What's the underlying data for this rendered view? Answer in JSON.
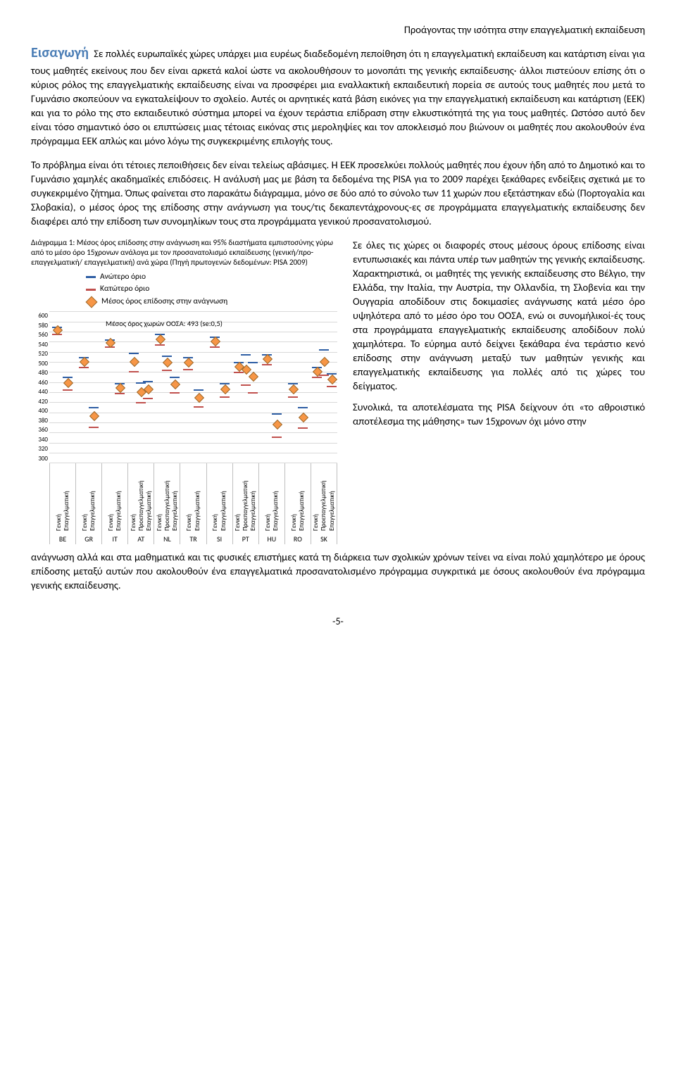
{
  "running_head": "Προάγοντας την ισότητα στην επαγγελματική εκπαίδευση",
  "section_title": "Εισαγωγή",
  "para1": "Σε πολλές ευρωπαϊκές χώρες υπάρχει μια ευρέως διαδεδομένη πεποίθηση ότι η επαγγελματική εκπαίδευση και κατάρτιση είναι για τους μαθητές εκείνους που δεν είναι αρκετά καλοί ώστε να ακολουθήσουν το μονοπάτι της γενικής εκπαίδευσης· άλλοι πιστεύουν επίσης ότι ο κύριος ρόλος της επαγγελματικής εκπαίδευσης είναι να προσφέρει μια εναλλακτική εκπαιδευτική πορεία σε αυτούς τους μαθητές που μετά το Γυμνάσιο σκοπεύουν να εγκαταλείψουν το σχολείο. Αυτές οι αρνητικές κατά βάση εικόνες για την επαγγελματική εκπαίδευση και κατάρτιση (ΕΕΚ) και για το ρόλο της στο εκπαιδευτικό σύστημα μπορεί να έχουν τεράστια επίδραση στην ελκυστικότητά της για τους μαθητές. Ωστόσο αυτό δεν είναι τόσο σημαντικό όσο οι επιπτώσεις μιας τέτοιας εικόνας στις μεροληψίες και τον αποκλεισμό που βιώνουν οι μαθητές που ακολουθούν ένα πρόγραμμα ΕΕΚ απλώς και μόνο λόγω της συγκεκριμένης επιλογής τους.",
  "para2_a": "Το πρόβλημα είναι ότι τέτοιες πεποιθήσεις δεν είναι τελείως αβάσιμες. Η ΕΕΚ προσελκύει πολλούς μαθητές που έχουν ήδη από το Δημοτικό και το Γυμνάσιο χαμηλές ακαδημαϊκές επιδόσεις. Η ανάλυσή μας με βάση τα δεδομένα της PISA για το 2009 παρέχει ξεκάθαρες ενδείξεις σχετικά με το συγκεκριμένο ζήτημα. Όπως φαίνεται στο παρακάτω διάγραμμα, μόνο σε δύο από το σύνολο των 11 χωρών που εξετάστηκαν εδώ (Πορτογαλία και Σλοβακία), ο μέσος όρος της επίδοσης στην ",
  "para2_italic": "ανάγνωση",
  "para2_b": " για τους/τις δεκαπεντάχρονους-ες σε προγράμματα επαγγελματικής εκπαίδευσης δεν διαφέρει από την επίδοση των συνομηλίκων τους στα προγράμματα γενικού προσανατολισμού.",
  "chart": {
    "caption": "Διάγραμμα 1: Μέσος όρος επίδοσης στην ανάγνωση και 95% διαστήματα εμπιστοσύνης γύρω από το μέσο όρο 15χρονων ανάλογα με τον προσανατολισμό εκπαίδευσης (γενική/προ-επαγγελματική/ επαγγελματική) ανά χώρα (Πηγή πρωτογενών δεδομένων: PISA 2009)",
    "legend": {
      "upper": "Ανώτερο όριο",
      "lower": "Κατώτερο όριο",
      "mean": "Μέσος όρος επίδοσης στην ανάγνωση"
    },
    "mean_line_label": "Μέσος όρος χωρών ΟΟΣΑ: 493 (se:0,5)",
    "ylim": [
      300,
      600
    ],
    "ytick_step": 20,
    "track_labels": {
      "gen": "Γενική",
      "pre": "Προεπαγγελματική",
      "voc": "Επαγγελματική"
    },
    "colors": {
      "upper": "#2e5ea4",
      "lower": "#c0504d",
      "mean_fill": "#f79646",
      "mean_border": "#9c6a2d",
      "grid": "#d9d9d9"
    },
    "countries": [
      {
        "code": "BE",
        "tracks": [
          {
            "t": "gen",
            "mean": 562,
            "lo": 555,
            "hi": 570
          },
          {
            "t": "voc",
            "mean": 458,
            "lo": 445,
            "hi": 470
          }
        ]
      },
      {
        "code": "GR",
        "tracks": [
          {
            "t": "gen",
            "mean": 500,
            "lo": 490,
            "hi": 510
          },
          {
            "t": "voc",
            "mean": 392,
            "lo": 372,
            "hi": 410
          }
        ]
      },
      {
        "code": "IT",
        "tracks": [
          {
            "t": "gen",
            "mean": 538,
            "lo": 530,
            "hi": 545
          },
          {
            "t": "voc",
            "mean": 448,
            "lo": 438,
            "hi": 458
          }
        ]
      },
      {
        "code": "AT",
        "tracks": [
          {
            "t": "gen",
            "mean": 500,
            "lo": 482,
            "hi": 518
          },
          {
            "t": "pre",
            "mean": 440,
            "lo": 420,
            "hi": 460
          },
          {
            "t": "voc",
            "mean": 445,
            "lo": 428,
            "hi": 462
          }
        ]
      },
      {
        "code": "NL",
        "tracks": [
          {
            "t": "gen",
            "mean": 545,
            "lo": 535,
            "hi": 555
          },
          {
            "t": "pre",
            "mean": 498,
            "lo": 485,
            "hi": 512
          },
          {
            "t": "voc",
            "mean": 455,
            "lo": 440,
            "hi": 470
          }
        ]
      },
      {
        "code": "TR",
        "tracks": [
          {
            "t": "gen",
            "mean": 498,
            "lo": 486,
            "hi": 510
          },
          {
            "t": "voc",
            "mean": 428,
            "lo": 412,
            "hi": 445
          }
        ]
      },
      {
        "code": "SI",
        "tracks": [
          {
            "t": "gen",
            "mean": 540,
            "lo": 530,
            "hi": 550
          },
          {
            "t": "voc",
            "mean": 445,
            "lo": 432,
            "hi": 458
          }
        ]
      },
      {
        "code": "PT",
        "tracks": [
          {
            "t": "gen",
            "mean": 490,
            "lo": 480,
            "hi": 500
          },
          {
            "t": "pre",
            "mean": 485,
            "lo": 455,
            "hi": 515
          },
          {
            "t": "voc",
            "mean": 470,
            "lo": 440,
            "hi": 500
          }
        ]
      },
      {
        "code": "HU",
        "tracks": [
          {
            "t": "gen",
            "mean": 505,
            "lo": 495,
            "hi": 515
          },
          {
            "t": "voc",
            "mean": 375,
            "lo": 352,
            "hi": 398
          }
        ]
      },
      {
        "code": "RO",
        "tracks": [
          {
            "t": "gen",
            "mean": 445,
            "lo": 432,
            "hi": 458
          },
          {
            "t": "voc",
            "mean": 390,
            "lo": 370,
            "hi": 410
          }
        ]
      },
      {
        "code": "SK",
        "tracks": [
          {
            "t": "gen",
            "mean": 480,
            "lo": 470,
            "hi": 490
          },
          {
            "t": "pre",
            "mean": 500,
            "lo": 475,
            "hi": 525
          },
          {
            "t": "voc",
            "mean": 465,
            "lo": 452,
            "hi": 478
          }
        ]
      }
    ]
  },
  "side1": "Σε όλες τις χώρες οι διαφορές στους μέσους όρους επίδοσης είναι εντυπωσιακές και πάντα υπέρ των μαθητών της γενικής εκπαίδευσης. Χαρακτηριστικά, οι μαθητές της γενικής εκπαίδευσης στο Βέλγιο, την Ελλάδα, την Ιταλία, την Αυστρία, την Ολλανδία, τη Σλοβενία και την Ουγγαρία αποδίδουν στις δοκιμασίες ανάγνωσης κατά μέσο όρο υψηλότερα από το μέσο όρο του ΟΟΣΑ, ενώ οι συνομήλικοί-ές τους στα προγράμματα επαγγελματικής εκπαίδευσης αποδίδουν πολύ χαμηλότερα. Το εύρημα αυτό δείχνει ξεκάθαρα ένα τεράστιο κενό επίδοσης στην ανάγνωση μεταξύ των μαθητών γενικής και επαγγελματικής εκπαίδευσης για πολλές από τις χώρες του δείγματος.",
  "side2": "Συνολικά, τα αποτελέσματα της PISA δείχνουν ότι «το αθροιστικό αποτέλεσμα της μάθησης» των 15χρονων όχι μόνο στην",
  "para_last": "ανάγνωση αλλά και στα μαθηματικά και τις φυσικές επιστήμες κατά τη διάρκεια των σχολικών χρόνων τείνει να είναι πολύ χαμηλότερο με όρους επίδοσης μεταξύ αυτών που ακολουθούν ένα επαγγελματικά προσανατολισμένο πρόγραμμα συγκριτικά με όσους ακολουθούν ένα πρόγραμμα γενικής εκπαίδευσης.",
  "page": "-5-"
}
